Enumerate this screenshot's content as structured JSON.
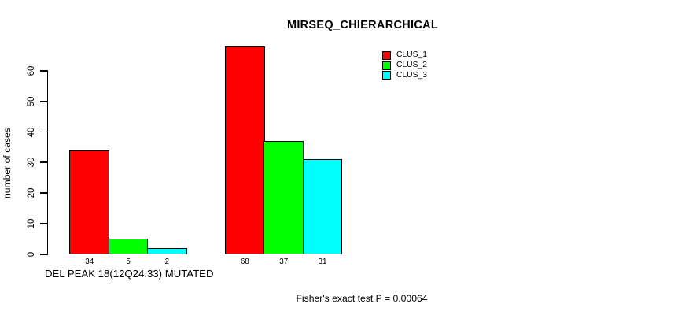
{
  "chart_data": {
    "type": "bar",
    "title": "MIRSEQ_CHIERARCHICAL",
    "ylabel": "number of cases",
    "group_label": "DEL PEAK 18(12Q24.33) MUTATED",
    "annotation": "Fisher's exact test P = 0.00064",
    "yticks": [
      0,
      10,
      20,
      30,
      40,
      50,
      60
    ],
    "ylim": [
      0,
      68
    ],
    "grid": false,
    "legend_position": "top-right",
    "series": [
      {
        "name": "CLUS_1",
        "color": "#ff0000",
        "values": [
          34,
          68
        ]
      },
      {
        "name": "CLUS_2",
        "color": "#00ff00",
        "values": [
          5,
          37
        ]
      },
      {
        "name": "CLUS_3",
        "color": "#00ffff",
        "values": [
          2,
          31
        ]
      }
    ],
    "bar_value_labels": [
      [
        34,
        5,
        2
      ],
      [
        68,
        37,
        31
      ]
    ],
    "colors": {
      "axis": "#000000",
      "text": "#000000",
      "background": "#ffffff"
    }
  }
}
